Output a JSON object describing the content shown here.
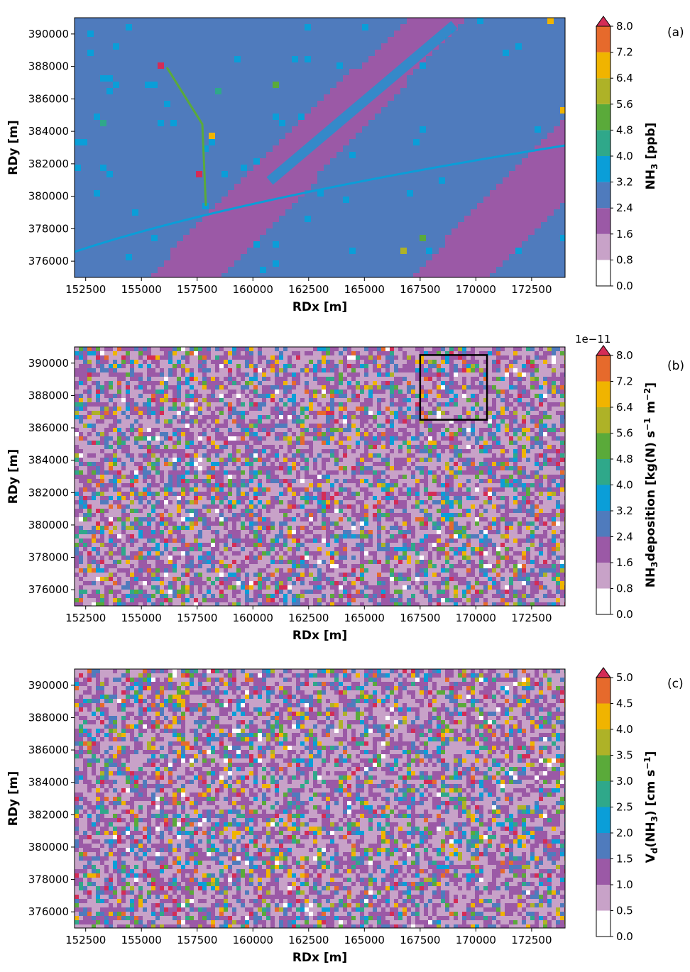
{
  "chart_data": [
    {
      "type": "heatmap",
      "panel_label": "(a)",
      "xlabel": "RDx [m]",
      "ylabel": "RDy [m]",
      "xlim": [
        152000,
        174000
      ],
      "ylim": [
        375000,
        391000
      ],
      "xticks": [
        "152500",
        "155000",
        "157500",
        "160000",
        "162500",
        "165000",
        "167500",
        "170000",
        "172500"
      ],
      "yticks": [
        "376000",
        "378000",
        "380000",
        "382000",
        "384000",
        "386000",
        "388000",
        "390000"
      ],
      "colorbar": {
        "label_main": "NH",
        "label_sub": "3",
        "label_rest": " [ppb]",
        "levels": [
          "0.0",
          "0.8",
          "1.6",
          "2.4",
          "3.2",
          "4.0",
          "4.8",
          "5.6",
          "6.4",
          "7.2",
          "8.0"
        ],
        "extend": "max",
        "offset_text": ""
      },
      "dominant_range_ppb": [
        2.4,
        3.2
      ],
      "max_shown": 8.0
    },
    {
      "type": "heatmap",
      "panel_label": "(b)",
      "xlabel": "RDx [m]",
      "ylabel": "RDy [m]",
      "xlim": [
        152000,
        174000
      ],
      "ylim": [
        375000,
        391000
      ],
      "xticks": [
        "152500",
        "155000",
        "157500",
        "160000",
        "162500",
        "165000",
        "167500",
        "170000",
        "172500"
      ],
      "yticks": [
        "376000",
        "378000",
        "380000",
        "382000",
        "384000",
        "386000",
        "388000",
        "390000"
      ],
      "colorbar": {
        "label_main": "NH",
        "label_sub": "3",
        "label_rest": "deposition [kg(N) s",
        "label_sup1": "−1",
        "label_mid": " m",
        "label_sup2": "−2",
        "label_end": "]",
        "levels": [
          "0.0",
          "0.8",
          "1.6",
          "2.4",
          "3.2",
          "4.0",
          "4.8",
          "5.6",
          "6.4",
          "7.2",
          "8.0"
        ],
        "extend": "max",
        "offset_text": "1e−11"
      },
      "highlight_box": {
        "x": [
          167500,
          170500
        ],
        "y": [
          386500,
          390500
        ]
      }
    },
    {
      "type": "heatmap",
      "panel_label": "(c)",
      "xlabel": "RDx [m]",
      "ylabel": "RDy [m]",
      "xlim": [
        152000,
        174000
      ],
      "ylim": [
        375000,
        391000
      ],
      "xticks": [
        "152500",
        "155000",
        "157500",
        "160000",
        "162500",
        "165000",
        "167500",
        "170000",
        "172500"
      ],
      "yticks": [
        "376000",
        "378000",
        "380000",
        "382000",
        "384000",
        "386000",
        "388000",
        "390000"
      ],
      "colorbar": {
        "label_main": "V",
        "label_sub": "d",
        "label_rest": "(NH",
        "label_sub2": "3",
        "label_mid": ") [cm s",
        "label_sup1": "−1",
        "label_end": "]",
        "levels": [
          "0.0",
          "0.5",
          "1.0",
          "1.5",
          "2.0",
          "2.5",
          "3.0",
          "3.5",
          "4.0",
          "4.5",
          "5.0"
        ],
        "extend": "max",
        "offset_text": ""
      }
    }
  ],
  "palette": [
    "#ffffff",
    "#c8a2c8",
    "#9b59a6",
    "#4f7bbd",
    "#0a9ed8",
    "#2fa88a",
    "#5aaa3a",
    "#aeb227",
    "#f0b400",
    "#e66a2c",
    "#d42c56"
  ]
}
